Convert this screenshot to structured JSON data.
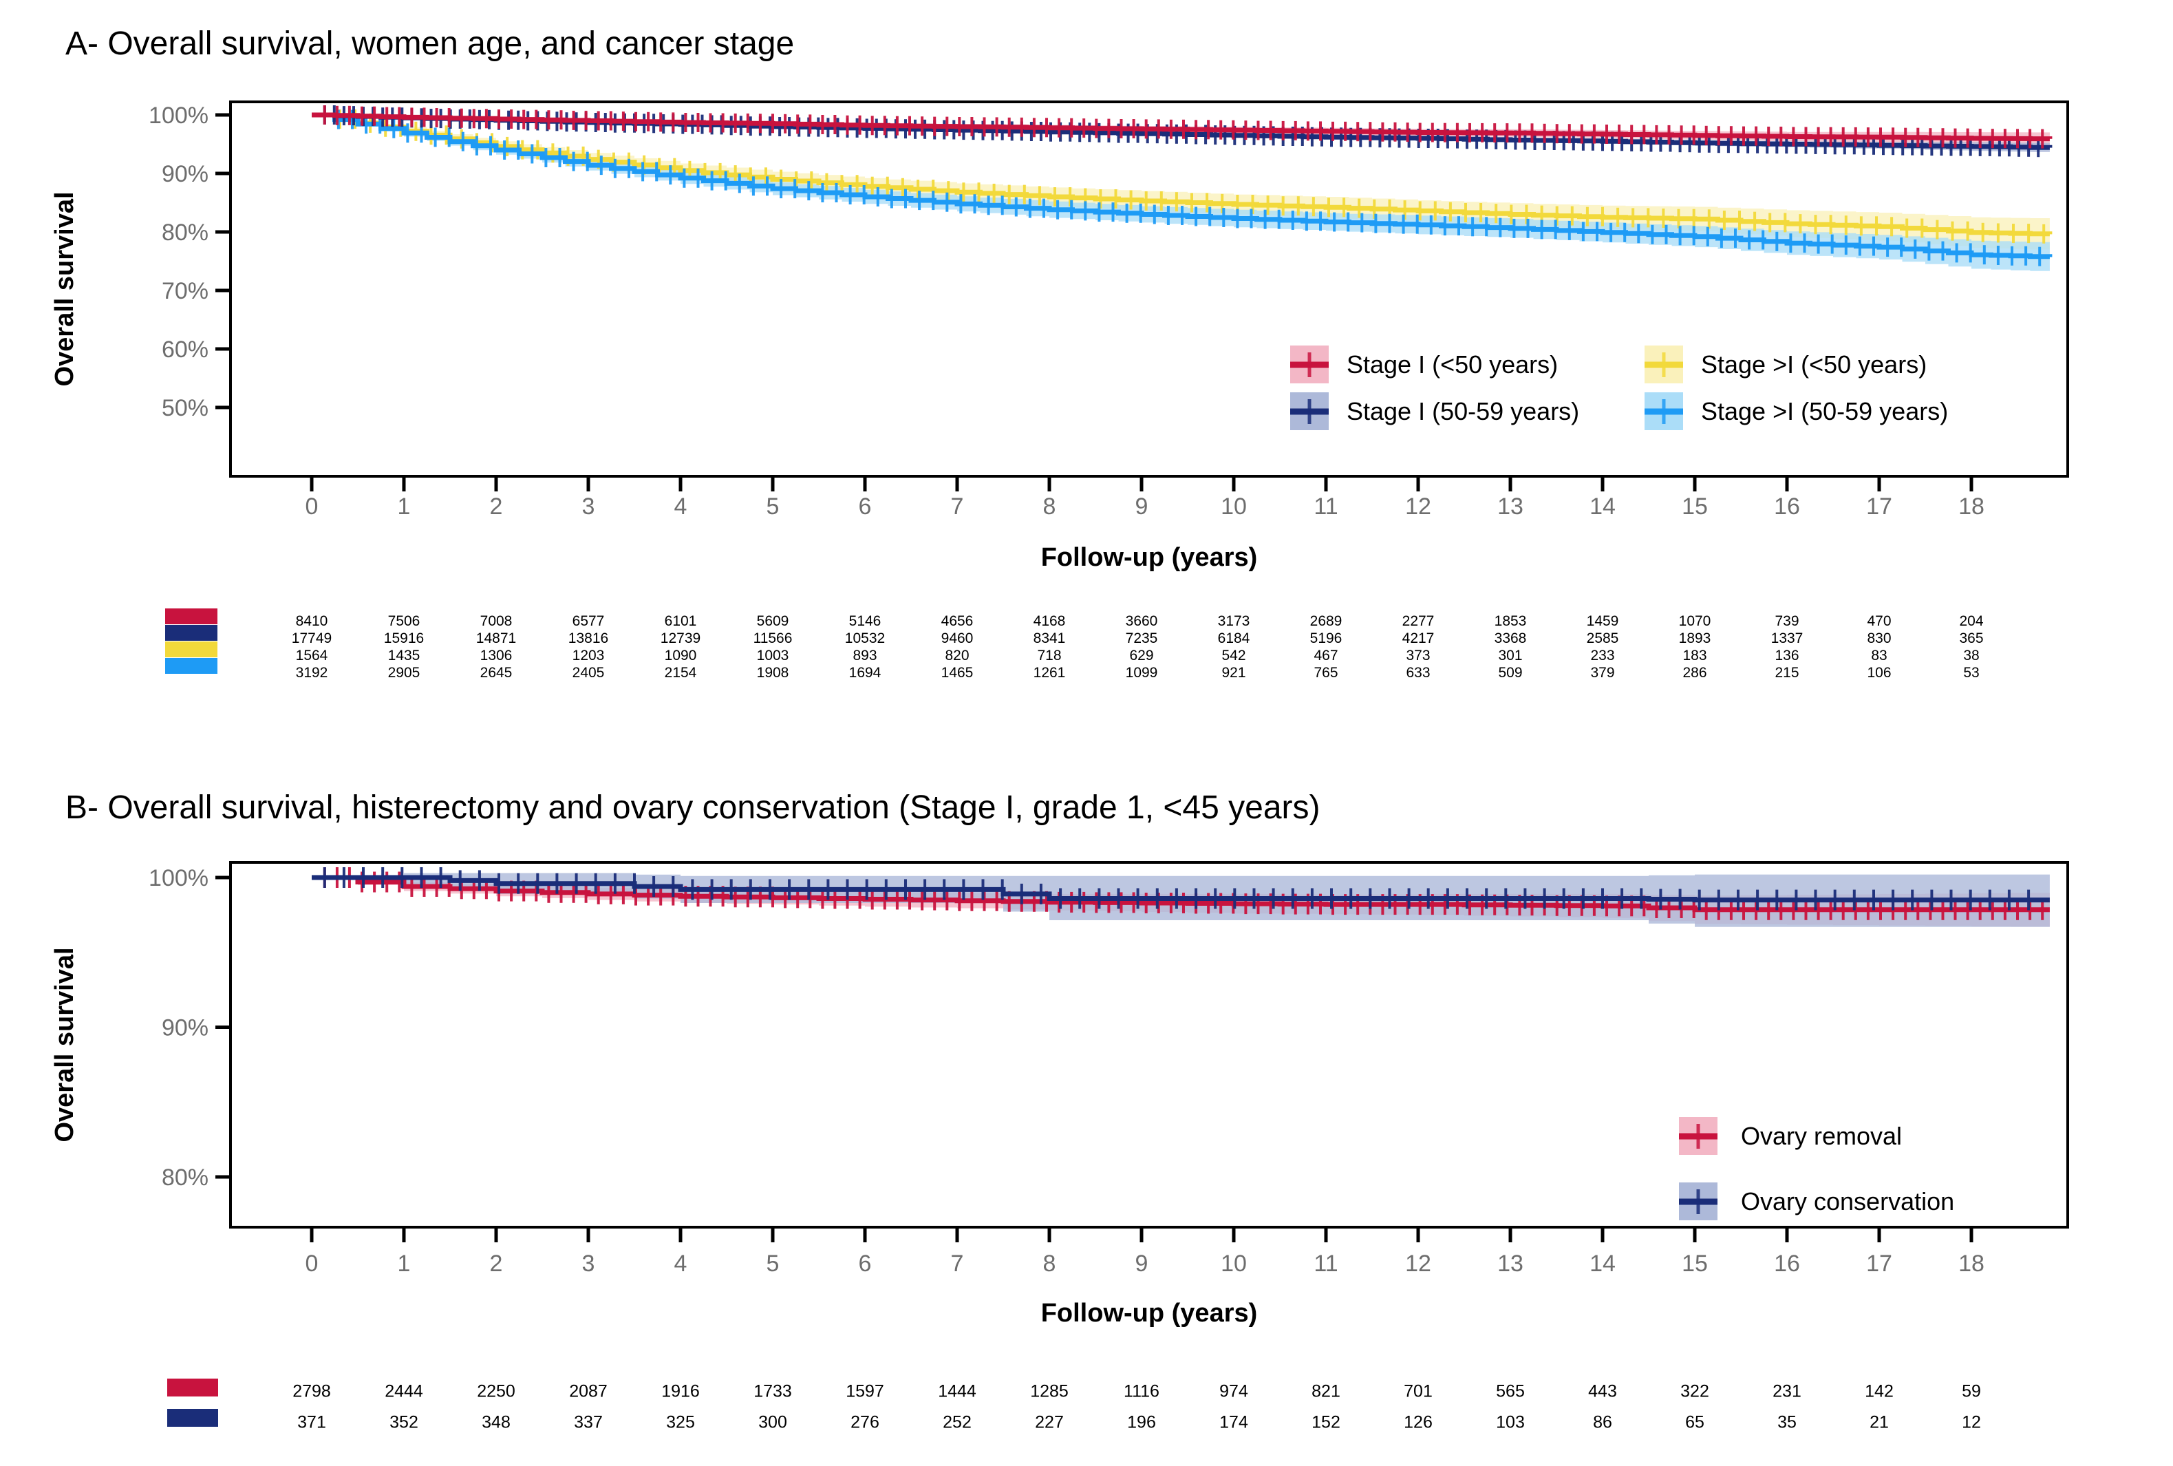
{
  "figure": {
    "background": "#ffffff"
  },
  "chart_data": [
    {
      "type": "line",
      "subtype": "kaplan-meier",
      "title": "A- Overall survival, women age, and cancer stage",
      "xlabel": "Follow-up (years)",
      "ylabel": "Overall survival",
      "xlim": [
        0,
        18.85
      ],
      "ylim_pct": [
        50,
        100
      ],
      "grid": false,
      "legend_position": "inside-right",
      "x_ticks": {
        "values": [
          0,
          1,
          2,
          3,
          4,
          5,
          6,
          7,
          8,
          9,
          10,
          11,
          12,
          13,
          14,
          15,
          16,
          17,
          18
        ],
        "labels": [
          "0",
          "1",
          "2",
          "3",
          "4",
          "5",
          "6",
          "7",
          "8",
          "9",
          "10",
          "11",
          "12",
          "13",
          "14",
          "15",
          "16",
          "17",
          "18"
        ]
      },
      "y_ticks": {
        "values": [
          100,
          90,
          80,
          70,
          60,
          50
        ],
        "labels": [
          "100%",
          "90%",
          "80%",
          "70%",
          "60%",
          "50%"
        ]
      },
      "x": [
        0,
        1,
        2,
        3,
        4,
        5,
        6,
        7,
        8,
        9,
        10,
        11,
        12,
        13,
        14,
        15,
        16,
        17,
        18,
        18.85
      ],
      "series": [
        {
          "name": "Stage I (<50 years)",
          "slug": "stage-i-lt50",
          "color": "#C8133E",
          "fill": "#F3B7C6",
          "values": [
            100,
            99.6,
            99.3,
            99.0,
            98.7,
            98.5,
            98.2,
            98.0,
            97.8,
            97.6,
            97.4,
            97.2,
            97.0,
            96.9,
            96.7,
            96.5,
            96.3,
            96.2,
            96.0,
            95.9
          ],
          "lower": [
            99.9,
            99.4,
            99.05,
            98.7,
            98.4,
            98.1,
            97.8,
            97.55,
            97.3,
            97.1,
            96.85,
            96.6,
            96.4,
            96.25,
            96.0,
            95.75,
            95.5,
            95.3,
            94.95,
            94.8
          ],
          "upper": [
            100,
            99.8,
            99.55,
            99.3,
            99.0,
            98.9,
            98.6,
            98.45,
            98.3,
            98.1,
            97.95,
            97.8,
            97.6,
            97.55,
            97.4,
            97.25,
            97.1,
            97.1,
            97.05,
            97.0
          ]
        },
        {
          "name": "Stage I (50-59 years)",
          "slug": "stage-i-50-59",
          "color": "#1A2D79",
          "fill": "#ADB9D9",
          "values": [
            100,
            99.5,
            99.1,
            98.7,
            98.4,
            98.0,
            97.7,
            97.4,
            97.1,
            96.8,
            96.5,
            96.2,
            96.0,
            95.7,
            95.5,
            95.2,
            95.0,
            94.8,
            94.6,
            94.4
          ],
          "lower": [
            99.95,
            99.4,
            98.95,
            98.55,
            98.2,
            97.8,
            97.5,
            97.15,
            96.85,
            96.5,
            96.2,
            95.9,
            95.65,
            95.3,
            95.1,
            94.75,
            94.5,
            94.2,
            93.85,
            93.6
          ],
          "upper": [
            100,
            99.6,
            99.25,
            98.85,
            98.6,
            98.2,
            97.9,
            97.65,
            97.35,
            97.1,
            96.8,
            96.5,
            96.35,
            96.1,
            95.9,
            95.65,
            95.5,
            95.4,
            95.35,
            95.2
          ]
        },
        {
          "name": "Stage >I (<50 years)",
          "slug": "stage-gt-i-lt50",
          "color": "#F2D93B",
          "fill": "#FAF1BB",
          "values": [
            100,
            97.2,
            94.6,
            92.4,
            90.5,
            89.0,
            87.8,
            86.8,
            86.0,
            85.3,
            84.7,
            84.2,
            83.6,
            83.0,
            82.5,
            82.2,
            81.4,
            80.9,
            79.9,
            79.6
          ],
          "lower": [
            99.8,
            96.5,
            93.7,
            91.3,
            89.3,
            87.7,
            86.4,
            85.3,
            84.4,
            83.6,
            83.0,
            82.4,
            81.8,
            81.1,
            80.5,
            80.1,
            79.1,
            78.5,
            77.3,
            76.9
          ],
          "upper": [
            100,
            97.9,
            95.5,
            93.5,
            91.7,
            90.3,
            89.2,
            88.3,
            87.6,
            87.0,
            86.4,
            86.0,
            85.4,
            84.9,
            84.5,
            84.3,
            83.7,
            83.3,
            82.5,
            82.3
          ]
        },
        {
          "name": "Stage >I (50-59 years)",
          "slug": "stage-gt-i-50-59",
          "color": "#1E9BF5",
          "fill": "#ABDDF8",
          "values": [
            100,
            96.9,
            94.0,
            91.4,
            89.2,
            87.4,
            86.0,
            84.8,
            83.8,
            83.0,
            82.3,
            81.7,
            81.2,
            80.6,
            79.9,
            79.2,
            78.1,
            77.4,
            76.1,
            75.7
          ],
          "lower": [
            99.8,
            96.3,
            93.2,
            90.5,
            88.2,
            86.3,
            84.8,
            83.5,
            82.4,
            81.6,
            80.8,
            80.2,
            79.6,
            79.0,
            78.2,
            77.4,
            76.1,
            75.3,
            73.7,
            73.2
          ],
          "upper": [
            100,
            97.5,
            94.8,
            92.3,
            90.2,
            88.5,
            87.2,
            86.1,
            85.2,
            84.4,
            83.8,
            83.2,
            82.8,
            82.2,
            81.6,
            81.0,
            80.1,
            79.5,
            78.5,
            78.2
          ]
        }
      ],
      "at_risk": [
        [
          8410,
          7506,
          7008,
          6577,
          6101,
          5609,
          5146,
          4656,
          4168,
          3660,
          3173,
          2689,
          2277,
          1853,
          1459,
          1070,
          739,
          470,
          204
        ],
        [
          17749,
          15916,
          14871,
          13816,
          12739,
          11566,
          10532,
          9460,
          8341,
          7235,
          6184,
          5196,
          4217,
          3368,
          2585,
          1893,
          1337,
          830,
          365
        ],
        [
          1564,
          1435,
          1306,
          1203,
          1090,
          1003,
          893,
          820,
          718,
          629,
          542,
          467,
          373,
          301,
          233,
          183,
          136,
          83,
          38
        ],
        [
          3192,
          2905,
          2645,
          2405,
          2154,
          1908,
          1694,
          1465,
          1261,
          1099,
          921,
          765,
          633,
          509,
          379,
          286,
          215,
          106,
          53
        ]
      ]
    },
    {
      "type": "line",
      "subtype": "kaplan-meier",
      "title": "B- Overall survival, histerectomy and ovary conservation (Stage I, grade 1, <45 years)",
      "xlabel": "Follow-up (years)",
      "ylabel": "Overall survival",
      "xlim": [
        0,
        18.85
      ],
      "ylim_pct": [
        80,
        100
      ],
      "grid": false,
      "legend_position": "inside-right-bottom",
      "x_ticks": {
        "values": [
          0,
          1,
          2,
          3,
          4,
          5,
          6,
          7,
          8,
          9,
          10,
          11,
          12,
          13,
          14,
          15,
          16,
          17,
          18
        ],
        "labels": [
          "0",
          "1",
          "2",
          "3",
          "4",
          "5",
          "6",
          "7",
          "8",
          "9",
          "10",
          "11",
          "12",
          "13",
          "14",
          "15",
          "16",
          "17",
          "18"
        ]
      },
      "y_ticks": {
        "values": [
          100,
          90,
          80
        ],
        "labels": [
          "100%",
          "90%",
          "80%"
        ]
      },
      "x": [
        0,
        1,
        2,
        3,
        4,
        5,
        6,
        7,
        8,
        9,
        10,
        11,
        12,
        13,
        14,
        15,
        16,
        17,
        18,
        18.85
      ],
      "series": [
        {
          "name": "Ovary removal",
          "slug": "ovary-removal",
          "color": "#C8133E",
          "fill": "#F3B7C6",
          "values": [
            100,
            99.4,
            99.1,
            98.9,
            98.75,
            98.65,
            98.55,
            98.45,
            98.35,
            98.3,
            98.25,
            98.2,
            98.2,
            98.15,
            98.1,
            97.85,
            97.85,
            97.85,
            97.85,
            97.85
          ],
          "lower": [
            99.9,
            99.1,
            98.75,
            98.5,
            98.3,
            98.2,
            98.05,
            97.95,
            97.8,
            97.7,
            97.6,
            97.55,
            97.5,
            97.4,
            97.3,
            96.9,
            96.85,
            96.8,
            96.75,
            96.7
          ],
          "upper": [
            100,
            99.7,
            99.45,
            99.3,
            99.2,
            99.1,
            99.05,
            98.95,
            98.9,
            98.9,
            98.9,
            98.85,
            98.9,
            98.9,
            98.9,
            98.8,
            98.85,
            98.9,
            98.95,
            99.0
          ]
        },
        {
          "name": "Ovary conservation",
          "slug": "ovary-conservation",
          "color": "#1A2D79",
          "fill": "#ADB9D9",
          "values": [
            100,
            100,
            99.6,
            99.6,
            99.2,
            99.2,
            99.2,
            99.2,
            98.6,
            98.6,
            98.6,
            98.6,
            98.6,
            98.6,
            98.6,
            98.5,
            98.5,
            98.5,
            98.5,
            98.5
          ],
          "lower": [
            99.9,
            99.5,
            98.9,
            98.9,
            98.3,
            98.3,
            98.3,
            98.3,
            97.15,
            97.15,
            97.15,
            97.15,
            97.15,
            97.15,
            97.15,
            96.7,
            96.7,
            96.7,
            96.7,
            96.7
          ],
          "upper": [
            100,
            100.3,
            100.3,
            100.3,
            100.1,
            100.1,
            100.1,
            100.1,
            100.1,
            100.1,
            100.1,
            100.1,
            100.1,
            100.1,
            100.1,
            100.2,
            100.2,
            100.2,
            100.2,
            100.2
          ]
        }
      ],
      "at_risk": [
        [
          2798,
          2444,
          2250,
          2087,
          1916,
          1733,
          1597,
          1444,
          1285,
          1116,
          974,
          821,
          701,
          565,
          443,
          322,
          231,
          142,
          59
        ],
        [
          371,
          352,
          348,
          337,
          325,
          300,
          276,
          252,
          227,
          196,
          174,
          152,
          126,
          103,
          86,
          65,
          35,
          21,
          12
        ]
      ]
    }
  ]
}
